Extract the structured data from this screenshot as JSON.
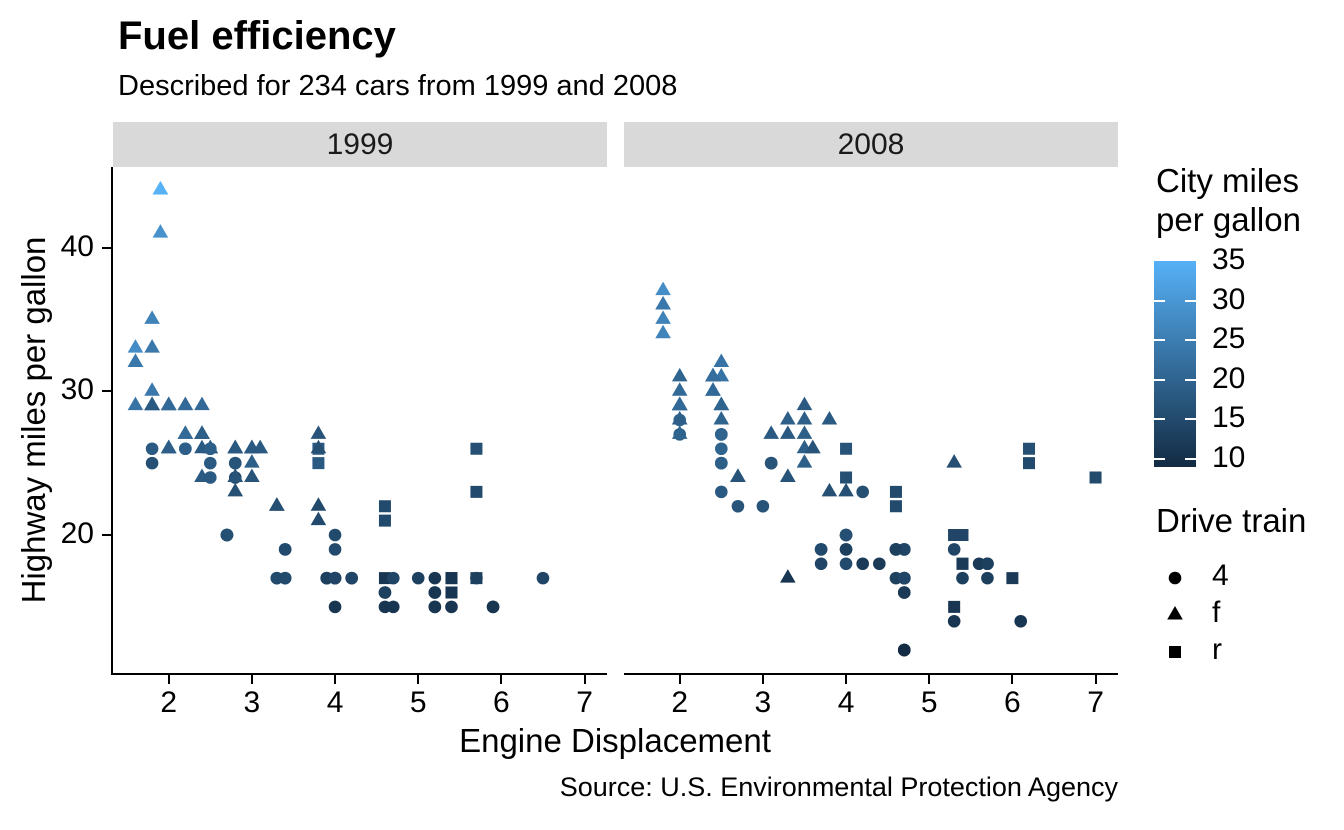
{
  "chart_data": {
    "type": "scatter",
    "title": "Fuel efficiency",
    "subtitle": "Described for 234 cars from 1999 and 2008",
    "caption": "Source: U.S. Environmental Protection Agency",
    "xlabel": "Engine Displacement",
    "ylabel": "Highway miles per gallon",
    "facets": [
      "1999",
      "2008"
    ],
    "facet_by": "year",
    "grid": false,
    "strip_fill": "#D9D9D9",
    "xlim": [
      1.33,
      7.27
    ],
    "ylim": [
      10.4,
      45.6
    ],
    "xticks": [
      2,
      3,
      4,
      5,
      6,
      7
    ],
    "yticks": [
      20,
      30,
      40
    ],
    "color_scale": {
      "title": "City miles\nper gallon",
      "low": "#132B43",
      "high": "#56B1F7",
      "domain": [
        9,
        35
      ],
      "ticks": [
        35,
        30,
        25,
        20,
        15,
        10
      ]
    },
    "shape_scale": {
      "title": "Drive train",
      "entries": [
        {
          "shape": "circle",
          "label": "4"
        },
        {
          "shape": "triangle",
          "label": "f"
        },
        {
          "shape": "square",
          "label": "r"
        }
      ]
    },
    "point_fields": [
      "displ",
      "hwy",
      "cty",
      "drv",
      "year"
    ],
    "points": [
      [
        1.8,
        29,
        18,
        "f",
        1999
      ],
      [
        1.8,
        29,
        21,
        "f",
        1999
      ],
      [
        2,
        31,
        20,
        "f",
        2008
      ],
      [
        2,
        30,
        21,
        "f",
        2008
      ],
      [
        2.8,
        26,
        16,
        "f",
        1999
      ],
      [
        2.8,
        26,
        18,
        "f",
        1999
      ],
      [
        3.1,
        27,
        18,
        "f",
        2008
      ],
      [
        1.8,
        26,
        18,
        "4",
        1999
      ],
      [
        1.8,
        25,
        16,
        "4",
        1999
      ],
      [
        2,
        28,
        20,
        "4",
        2008
      ],
      [
        2,
        27,
        19,
        "4",
        2008
      ],
      [
        2.8,
        25,
        15,
        "4",
        1999
      ],
      [
        2.8,
        25,
        17,
        "4",
        1999
      ],
      [
        3.1,
        25,
        17,
        "4",
        2008
      ],
      [
        3.1,
        25,
        15,
        "4",
        2008
      ],
      [
        2.8,
        24,
        15,
        "4",
        1999
      ],
      [
        3.1,
        25,
        17,
        "4",
        2008
      ],
      [
        4.2,
        23,
        16,
        "4",
        2008
      ],
      [
        5.3,
        20,
        14,
        "r",
        2008
      ],
      [
        5.3,
        15,
        11,
        "r",
        2008
      ],
      [
        5.3,
        20,
        14,
        "r",
        2008
      ],
      [
        5.7,
        17,
        13,
        "r",
        1999
      ],
      [
        6,
        17,
        12,
        "r",
        2008
      ],
      [
        5.7,
        26,
        16,
        "r",
        1999
      ],
      [
        5.7,
        23,
        15,
        "r",
        1999
      ],
      [
        6.2,
        26,
        16,
        "r",
        2008
      ],
      [
        6.2,
        25,
        15,
        "r",
        2008
      ],
      [
        7,
        24,
        15,
        "r",
        2008
      ],
      [
        5.3,
        19,
        14,
        "4",
        2008
      ],
      [
        5.3,
        14,
        11,
        "4",
        2008
      ],
      [
        5.7,
        17,
        13,
        "4",
        1999
      ],
      [
        6.5,
        17,
        14,
        "4",
        1999
      ],
      [
        2.4,
        27,
        19,
        "f",
        1999
      ],
      [
        2.4,
        30,
        22,
        "f",
        2008
      ],
      [
        3.1,
        26,
        18,
        "f",
        1999
      ],
      [
        3.5,
        29,
        18,
        "f",
        2008
      ],
      [
        3.6,
        26,
        17,
        "f",
        2008
      ],
      [
        2.4,
        24,
        18,
        "f",
        1999
      ],
      [
        3,
        24,
        17,
        "f",
        1999
      ],
      [
        3.3,
        22,
        16,
        "f",
        1999
      ],
      [
        3.3,
        22,
        16,
        "f",
        1999
      ],
      [
        3.3,
        24,
        17,
        "f",
        2008
      ],
      [
        3.3,
        24,
        17,
        "f",
        2008
      ],
      [
        3.3,
        17,
        11,
        "f",
        2008
      ],
      [
        3.8,
        22,
        15,
        "f",
        1999
      ],
      [
        3.8,
        21,
        15,
        "f",
        1999
      ],
      [
        3.8,
        23,
        16,
        "f",
        2008
      ],
      [
        4,
        23,
        16,
        "f",
        2008
      ],
      [
        3.7,
        19,
        15,
        "4",
        2008
      ],
      [
        3.7,
        18,
        14,
        "4",
        2008
      ],
      [
        3.9,
        17,
        13,
        "4",
        1999
      ],
      [
        3.9,
        17,
        14,
        "4",
        1999
      ],
      [
        4.7,
        19,
        14,
        "4",
        2008
      ],
      [
        4.7,
        19,
        14,
        "4",
        2008
      ],
      [
        4.7,
        12,
        9,
        "4",
        2008
      ],
      [
        5.2,
        17,
        11,
        "4",
        1999
      ],
      [
        5.2,
        15,
        11,
        "4",
        1999
      ],
      [
        3.9,
        17,
        13,
        "4",
        1999
      ],
      [
        4.7,
        17,
        13,
        "4",
        2008
      ],
      [
        4.7,
        12,
        9,
        "4",
        2008
      ],
      [
        4.7,
        17,
        13,
        "4",
        2008
      ],
      [
        5.2,
        16,
        11,
        "4",
        1999
      ],
      [
        5.7,
        18,
        13,
        "4",
        2008
      ],
      [
        5.9,
        15,
        11,
        "4",
        1999
      ],
      [
        4.7,
        16,
        12,
        "4",
        2008
      ],
      [
        4.7,
        12,
        9,
        "4",
        2008
      ],
      [
        4.7,
        17,
        13,
        "4",
        2008
      ],
      [
        4.7,
        17,
        13,
        "4",
        2008
      ],
      [
        4.7,
        16,
        12,
        "4",
        2008
      ],
      [
        4.7,
        17,
        13,
        "4",
        2008
      ],
      [
        5.2,
        15,
        11,
        "4",
        1999
      ],
      [
        5.2,
        16,
        11,
        "4",
        1999
      ],
      [
        5.7,
        17,
        13,
        "4",
        2008
      ],
      [
        5.9,
        15,
        11,
        "4",
        1999
      ],
      [
        4.6,
        17,
        11,
        "r",
        1999
      ],
      [
        5.4,
        17,
        11,
        "r",
        1999
      ],
      [
        5.4,
        18,
        12,
        "r",
        2008
      ],
      [
        4,
        17,
        14,
        "4",
        1999
      ],
      [
        4,
        19,
        15,
        "4",
        1999
      ],
      [
        4,
        17,
        14,
        "4",
        1999
      ],
      [
        4,
        19,
        13,
        "4",
        2008
      ],
      [
        4.6,
        19,
        13,
        "4",
        2008
      ],
      [
        4.6,
        19,
        13,
        "4",
        2008
      ],
      [
        4.2,
        17,
        14,
        "4",
        1999
      ],
      [
        4.2,
        17,
        14,
        "4",
        1999
      ],
      [
        4.6,
        16,
        13,
        "4",
        1999
      ],
      [
        4.6,
        16,
        13,
        "4",
        1999
      ],
      [
        4.6,
        17,
        13,
        "4",
        2008
      ],
      [
        5.4,
        15,
        11,
        "4",
        1999
      ],
      [
        5.4,
        17,
        13,
        "4",
        2008
      ],
      [
        3.8,
        26,
        18,
        "r",
        1999
      ],
      [
        3.8,
        25,
        18,
        "r",
        1999
      ],
      [
        4,
        26,
        17,
        "r",
        2008
      ],
      [
        4,
        24,
        16,
        "r",
        2008
      ],
      [
        4.6,
        21,
        15,
        "r",
        1999
      ],
      [
        4.6,
        22,
        15,
        "r",
        1999
      ],
      [
        4.6,
        23,
        15,
        "r",
        2008
      ],
      [
        4.6,
        22,
        15,
        "r",
        2008
      ],
      [
        5.4,
        20,
        14,
        "r",
        2008
      ],
      [
        1.6,
        33,
        28,
        "f",
        1999
      ],
      [
        1.6,
        32,
        24,
        "f",
        1999
      ],
      [
        1.6,
        32,
        25,
        "f",
        1999
      ],
      [
        1.6,
        29,
        23,
        "f",
        1999
      ],
      [
        1.6,
        32,
        24,
        "f",
        1999
      ],
      [
        1.8,
        34,
        26,
        "f",
        2008
      ],
      [
        1.8,
        36,
        25,
        "f",
        2008
      ],
      [
        1.8,
        36,
        24,
        "f",
        2008
      ],
      [
        2,
        29,
        21,
        "f",
        2008
      ],
      [
        2.4,
        26,
        18,
        "f",
        1999
      ],
      [
        2.4,
        27,
        18,
        "f",
        1999
      ],
      [
        2.4,
        30,
        21,
        "f",
        2008
      ],
      [
        2.4,
        31,
        21,
        "f",
        2008
      ],
      [
        2.5,
        26,
        18,
        "f",
        1999
      ],
      [
        2.5,
        26,
        18,
        "f",
        1999
      ],
      [
        3.3,
        28,
        19,
        "f",
        2008
      ],
      [
        2,
        26,
        19,
        "f",
        1999
      ],
      [
        2,
        29,
        19,
        "f",
        1999
      ],
      [
        2,
        28,
        20,
        "f",
        2008
      ],
      [
        2,
        27,
        20,
        "f",
        2008
      ],
      [
        2.7,
        24,
        17,
        "f",
        2008
      ],
      [
        2.7,
        24,
        16,
        "f",
        2008
      ],
      [
        2.7,
        24,
        17,
        "f",
        2008
      ],
      [
        3,
        22,
        17,
        "4",
        2008
      ],
      [
        3.7,
        19,
        15,
        "4",
        2008
      ],
      [
        4,
        20,
        15,
        "4",
        1999
      ],
      [
        4.7,
        17,
        14,
        "4",
        1999
      ],
      [
        4.7,
        12,
        9,
        "4",
        2008
      ],
      [
        4.7,
        19,
        14,
        "4",
        2008
      ],
      [
        5.7,
        18,
        13,
        "4",
        2008
      ],
      [
        6.1,
        14,
        11,
        "4",
        2008
      ],
      [
        4,
        15,
        11,
        "4",
        1999
      ],
      [
        4.2,
        18,
        12,
        "4",
        2008
      ],
      [
        4.4,
        18,
        12,
        "4",
        2008
      ],
      [
        4.6,
        15,
        11,
        "4",
        1999
      ],
      [
        5.4,
        17,
        11,
        "r",
        1999
      ],
      [
        5.4,
        16,
        11,
        "r",
        1999
      ],
      [
        5.4,
        18,
        12,
        "r",
        2008
      ],
      [
        4,
        17,
        14,
        "4",
        1999
      ],
      [
        4,
        19,
        13,
        "4",
        2008
      ],
      [
        4.6,
        19,
        13,
        "4",
        2008
      ],
      [
        5,
        17,
        13,
        "4",
        1999
      ],
      [
        2.4,
        29,
        21,
        "f",
        1999
      ],
      [
        2.4,
        27,
        19,
        "f",
        1999
      ],
      [
        2.5,
        31,
        23,
        "f",
        2008
      ],
      [
        2.5,
        32,
        23,
        "f",
        2008
      ],
      [
        3.5,
        27,
        19,
        "f",
        2008
      ],
      [
        3.5,
        26,
        19,
        "f",
        2008
      ],
      [
        3,
        26,
        18,
        "f",
        1999
      ],
      [
        3,
        25,
        19,
        "f",
        1999
      ],
      [
        3.5,
        25,
        19,
        "f",
        2008
      ],
      [
        3.3,
        17,
        14,
        "4",
        1999
      ],
      [
        3.3,
        17,
        15,
        "4",
        1999
      ],
      [
        4,
        20,
        14,
        "4",
        2008
      ],
      [
        5.6,
        18,
        12,
        "4",
        2008
      ],
      [
        3.1,
        26,
        18,
        "f",
        1999
      ],
      [
        3.8,
        26,
        16,
        "f",
        1999
      ],
      [
        3.8,
        27,
        17,
        "f",
        1999
      ],
      [
        3.8,
        28,
        18,
        "f",
        2008
      ],
      [
        5.3,
        25,
        16,
        "f",
        2008
      ],
      [
        2.5,
        25,
        18,
        "4",
        1999
      ],
      [
        2.5,
        24,
        18,
        "4",
        1999
      ],
      [
        2.5,
        27,
        20,
        "4",
        2008
      ],
      [
        2.5,
        25,
        19,
        "4",
        2008
      ],
      [
        2.5,
        26,
        20,
        "4",
        2008
      ],
      [
        2.5,
        23,
        18,
        "4",
        2008
      ],
      [
        2.2,
        26,
        21,
        "4",
        1999
      ],
      [
        2.2,
        26,
        19,
        "4",
        1999
      ],
      [
        2.5,
        26,
        19,
        "4",
        1999
      ],
      [
        2.5,
        26,
        19,
        "4",
        1999
      ],
      [
        2.5,
        25,
        20,
        "4",
        2008
      ],
      [
        2.5,
        27,
        20,
        "4",
        2008
      ],
      [
        2.5,
        25,
        19,
        "4",
        2008
      ],
      [
        2.5,
        27,
        20,
        "4",
        2008
      ],
      [
        2.7,
        20,
        15,
        "4",
        1999
      ],
      [
        2.7,
        20,
        16,
        "4",
        1999
      ],
      [
        3.4,
        19,
        15,
        "4",
        1999
      ],
      [
        3.4,
        17,
        15,
        "4",
        1999
      ],
      [
        4,
        20,
        16,
        "4",
        2008
      ],
      [
        4.7,
        17,
        14,
        "4",
        2008
      ],
      [
        2.2,
        29,
        21,
        "f",
        1999
      ],
      [
        2.2,
        27,
        21,
        "f",
        1999
      ],
      [
        2.4,
        31,
        21,
        "f",
        2008
      ],
      [
        2.4,
        31,
        21,
        "f",
        2008
      ],
      [
        3,
        26,
        18,
        "f",
        1999
      ],
      [
        3,
        26,
        18,
        "f",
        1999
      ],
      [
        3.5,
        28,
        19,
        "f",
        2008
      ],
      [
        2.2,
        27,
        21,
        "f",
        1999
      ],
      [
        2.2,
        29,
        21,
        "f",
        1999
      ],
      [
        2.4,
        31,
        21,
        "f",
        2008
      ],
      [
        2.4,
        31,
        22,
        "f",
        2008
      ],
      [
        3,
        26,
        18,
        "f",
        1999
      ],
      [
        3,
        26,
        18,
        "f",
        1999
      ],
      [
        3.3,
        27,
        18,
        "f",
        2008
      ],
      [
        1.8,
        30,
        24,
        "f",
        1999
      ],
      [
        1.8,
        33,
        24,
        "f",
        1999
      ],
      [
        1.8,
        35,
        26,
        "f",
        1999
      ],
      [
        1.8,
        37,
        28,
        "f",
        2008
      ],
      [
        1.8,
        35,
        26,
        "f",
        2008
      ],
      [
        4.7,
        15,
        11,
        "4",
        1999
      ],
      [
        5.7,
        18,
        13,
        "4",
        2008
      ],
      [
        2.7,
        20,
        15,
        "4",
        1999
      ],
      [
        2.7,
        20,
        16,
        "4",
        1999
      ],
      [
        2.7,
        22,
        17,
        "4",
        2008
      ],
      [
        3.4,
        17,
        15,
        "4",
        1999
      ],
      [
        3.4,
        19,
        15,
        "4",
        1999
      ],
      [
        4,
        18,
        15,
        "4",
        2008
      ],
      [
        4,
        20,
        16,
        "4",
        2008
      ],
      [
        2,
        29,
        21,
        "f",
        1999
      ],
      [
        2,
        26,
        19,
        "f",
        1999
      ],
      [
        2,
        29,
        21,
        "f",
        2008
      ],
      [
        2,
        29,
        22,
        "f",
        2008
      ],
      [
        2.8,
        24,
        17,
        "f",
        1999
      ],
      [
        1.9,
        44,
        33,
        "f",
        1999
      ],
      [
        2,
        29,
        21,
        "f",
        1999
      ],
      [
        2,
        26,
        19,
        "f",
        1999
      ],
      [
        2,
        29,
        22,
        "f",
        2008
      ],
      [
        2,
        29,
        21,
        "f",
        2008
      ],
      [
        2.5,
        29,
        21,
        "f",
        2008
      ],
      [
        2.5,
        29,
        21,
        "f",
        2008
      ],
      [
        2.8,
        23,
        16,
        "f",
        1999
      ],
      [
        2.8,
        24,
        17,
        "f",
        1999
      ],
      [
        1.9,
        44,
        35,
        "f",
        1999
      ],
      [
        1.9,
        41,
        29,
        "f",
        1999
      ],
      [
        2,
        29,
        21,
        "f",
        1999
      ],
      [
        2,
        26,
        19,
        "f",
        1999
      ],
      [
        2.5,
        28,
        20,
        "f",
        2008
      ],
      [
        2.5,
        29,
        20,
        "f",
        2008
      ],
      [
        1.8,
        29,
        21,
        "f",
        1999
      ],
      [
        1.8,
        29,
        18,
        "f",
        1999
      ],
      [
        2,
        28,
        19,
        "f",
        2008
      ],
      [
        2,
        29,
        21,
        "f",
        2008
      ],
      [
        2.8,
        26,
        16,
        "f",
        1999
      ],
      [
        2.8,
        26,
        18,
        "f",
        1999
      ],
      [
        3.6,
        26,
        17,
        "f",
        2008
      ]
    ]
  }
}
